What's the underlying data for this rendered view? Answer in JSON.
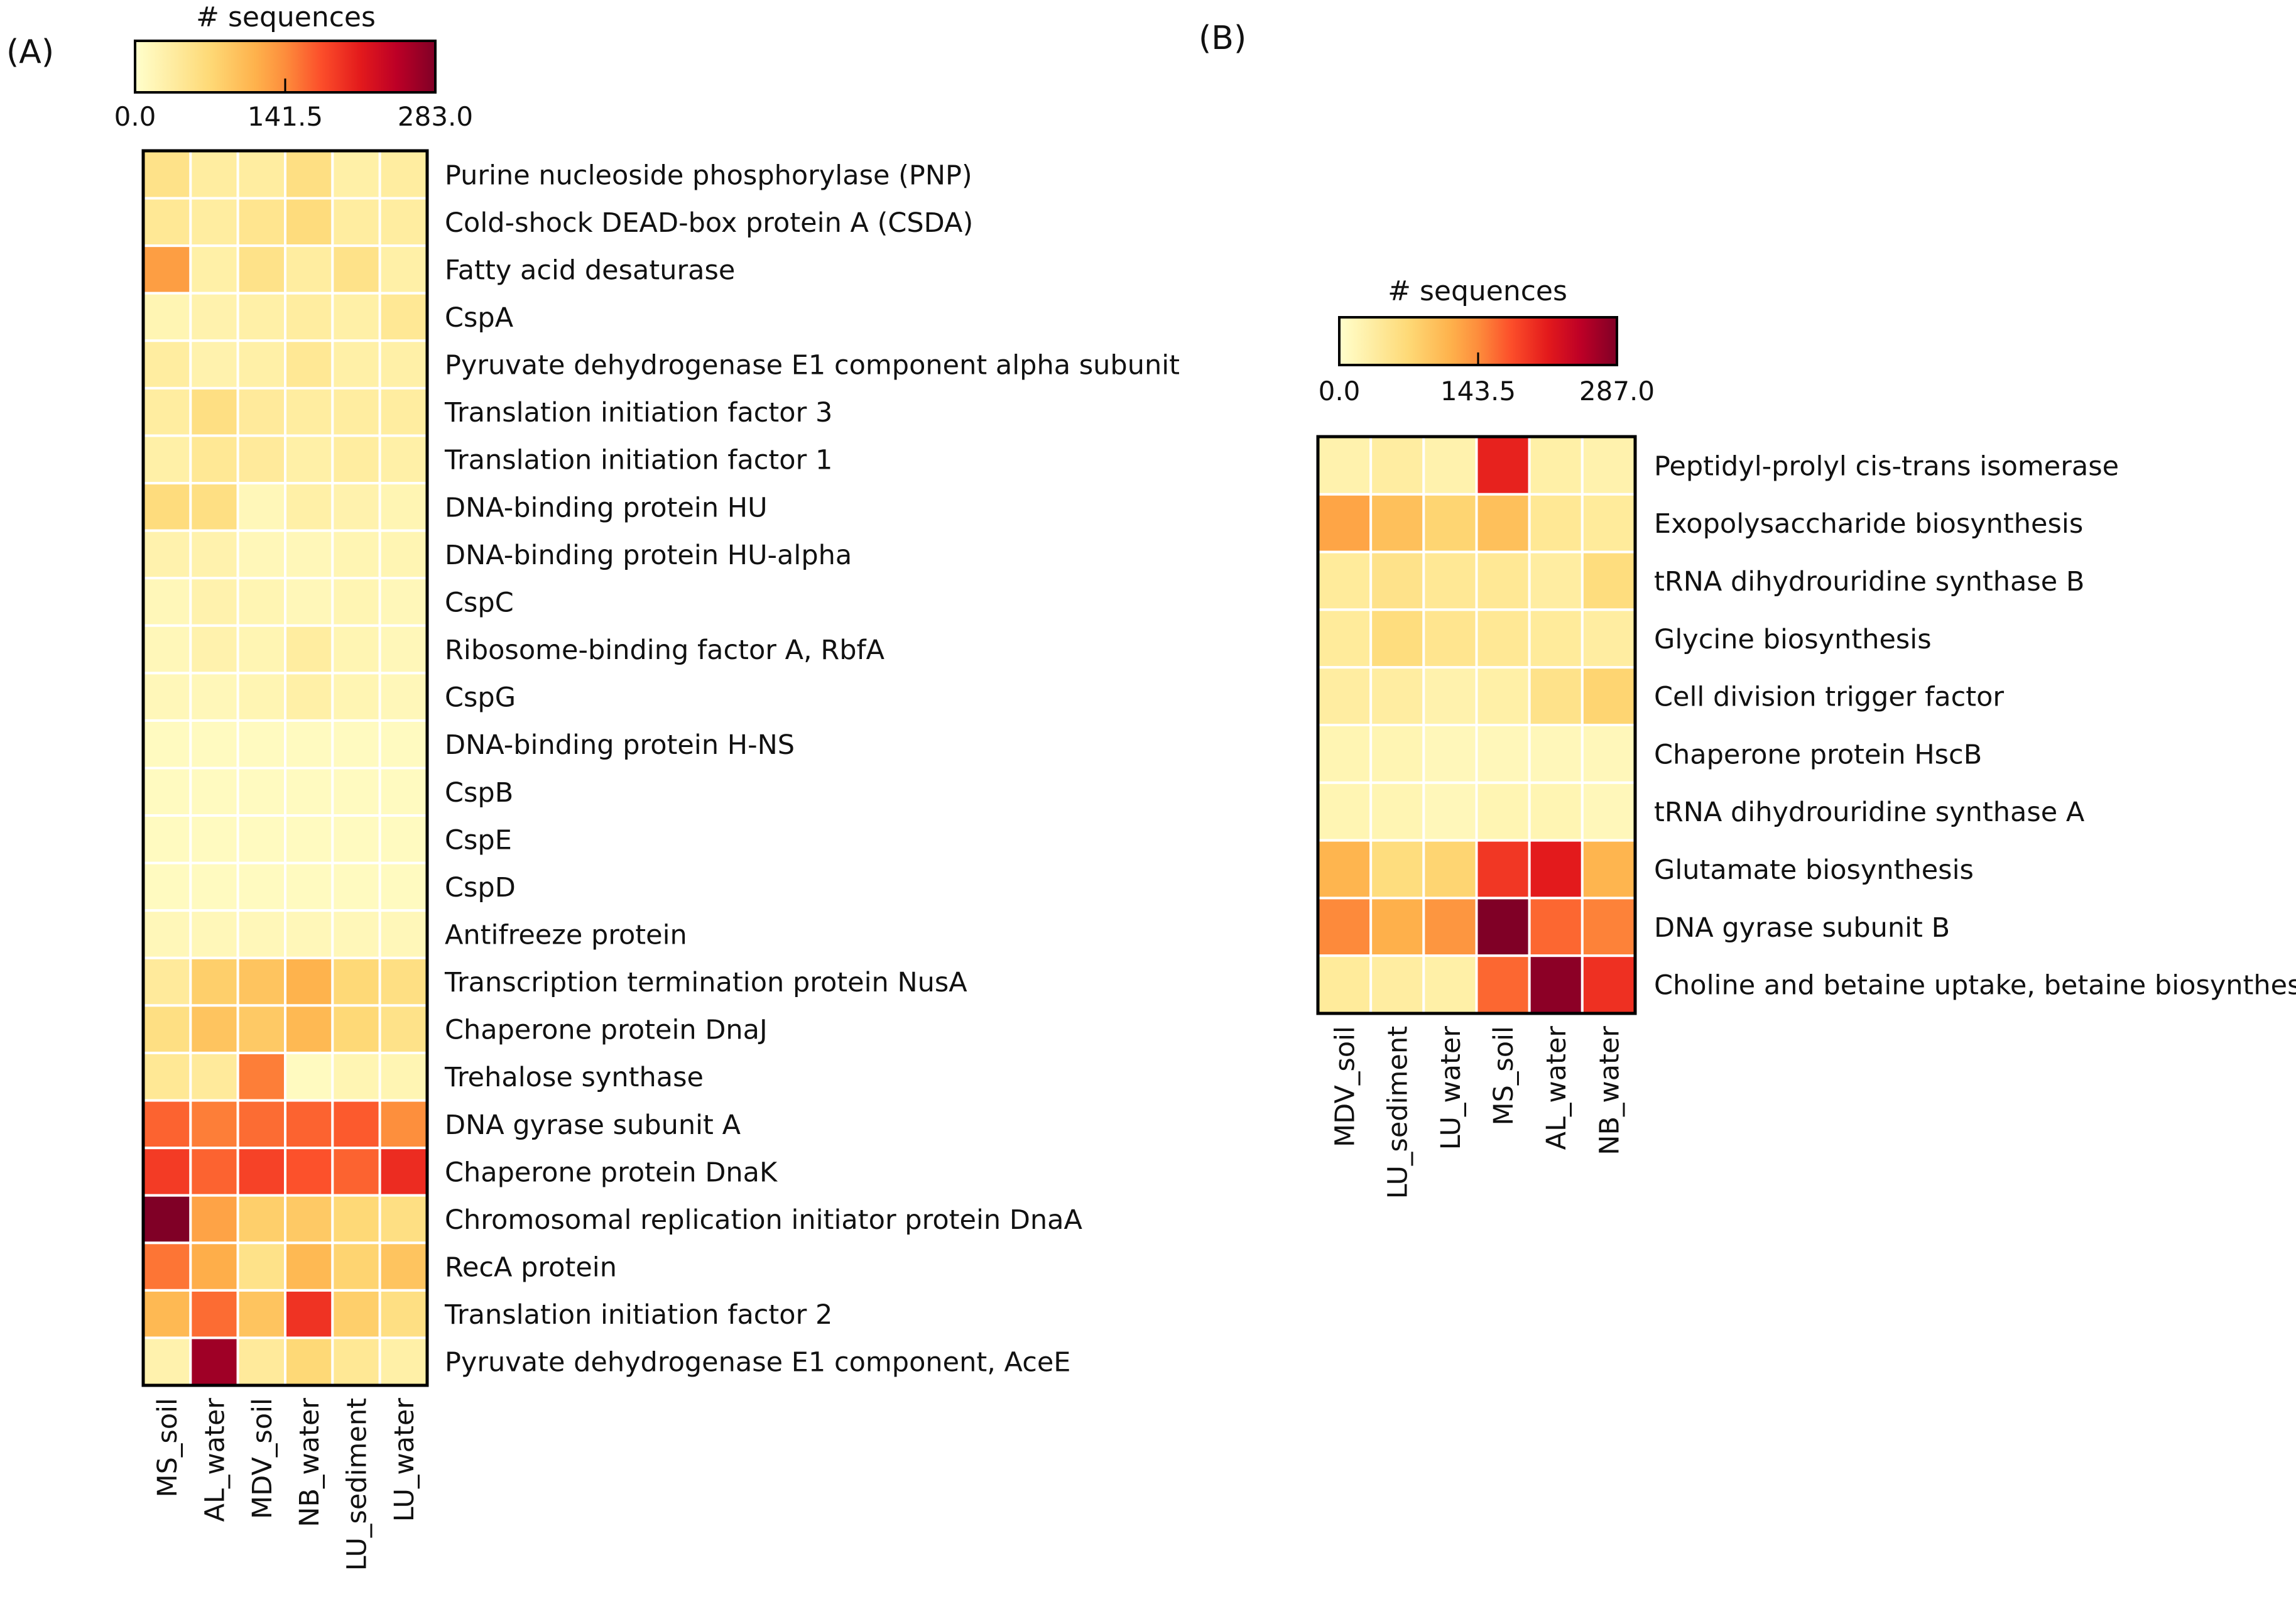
{
  "panels": {
    "a": {
      "tag": "(A)"
    },
    "b": {
      "tag": "(B)"
    }
  },
  "chart_data": [
    {
      "type": "heatmap",
      "panel": "A",
      "colorbar": {
        "title": "# sequences",
        "min": 0.0,
        "max": 283.0,
        "ticks": [
          "0.0",
          "141.5",
          "283.0"
        ]
      },
      "columns": [
        "MS_soil",
        "AL_water",
        "MDV_soil",
        "NB_water",
        "LU_sediment",
        "LU_water"
      ],
      "rows": [
        "Purine nucleoside phosphorylase (PNP)",
        "Cold-shock DEAD-box protein A (CSDA)",
        "Fatty acid desaturase",
        "CspA",
        "Pyruvate dehydrogenase E1 component alpha subunit",
        "Translation initiation factor 3",
        "Translation initiation factor 1",
        "DNA-binding protein HU",
        "DNA-binding protein HU-alpha",
        "CspC",
        "Ribosome-binding factor A, RbfA",
        "CspG",
        "DNA-binding protein H-NS",
        "CspB",
        "CspE",
        "CspD",
        "Antifreeze protein",
        "Transcription termination protein NusA",
        "Chaperone protein DnaJ",
        "Trehalose synthase",
        "DNA gyrase subunit A",
        "Chaperone protein DnaK",
        "Chromosomal replication initiator protein DnaA",
        "RecA protein",
        "Translation initiation factor 2",
        "Pyruvate dehydrogenase E1 component, AceE"
      ],
      "values": [
        [
          55,
          35,
          35,
          60,
          30,
          35
        ],
        [
          45,
          35,
          50,
          65,
          35,
          35
        ],
        [
          125,
          30,
          55,
          35,
          55,
          30
        ],
        [
          20,
          25,
          30,
          35,
          30,
          45
        ],
        [
          35,
          25,
          30,
          45,
          30,
          30
        ],
        [
          35,
          60,
          40,
          35,
          35,
          35
        ],
        [
          30,
          45,
          40,
          30,
          35,
          30
        ],
        [
          65,
          60,
          15,
          30,
          25,
          20
        ],
        [
          25,
          25,
          15,
          15,
          20,
          20
        ],
        [
          15,
          25,
          20,
          15,
          20,
          15
        ],
        [
          15,
          25,
          20,
          35,
          20,
          15
        ],
        [
          15,
          15,
          20,
          30,
          20,
          15
        ],
        [
          10,
          10,
          10,
          10,
          10,
          10
        ],
        [
          10,
          10,
          10,
          10,
          10,
          10
        ],
        [
          10,
          10,
          10,
          10,
          10,
          10
        ],
        [
          10,
          10,
          10,
          10,
          10,
          10
        ],
        [
          15,
          15,
          15,
          15,
          15,
          15
        ],
        [
          40,
          80,
          90,
          105,
          70,
          60
        ],
        [
          60,
          90,
          85,
          100,
          70,
          55
        ],
        [
          45,
          40,
          150,
          10,
          20,
          20
        ],
        [
          165,
          150,
          160,
          165,
          170,
          140
        ],
        [
          190,
          165,
          185,
          175,
          165,
          200
        ],
        [
          283,
          120,
          80,
          85,
          70,
          60
        ],
        [
          155,
          110,
          55,
          100,
          75,
          90
        ],
        [
          100,
          160,
          90,
          195,
          80,
          60
        ],
        [
          25,
          265,
          40,
          70,
          45,
          30
        ]
      ]
    },
    {
      "type": "heatmap",
      "panel": "B",
      "colorbar": {
        "title": "# sequences",
        "min": 0.0,
        "max": 287.0,
        "ticks": [
          "0.0",
          "143.5",
          "287.0"
        ]
      },
      "columns": [
        "MDV_soil",
        "LU_sediment",
        "LU_water",
        "MS_soil",
        "AL_water",
        "NB_water"
      ],
      "rows": [
        "Peptidyl-prolyl cis-trans isomerase",
        "Exopolysaccharide biosynthesis",
        "tRNA dihydrouridine synthase B",
        "Glycine biosynthesis",
        "Cell division trigger factor",
        "Chaperone protein HscB",
        "tRNA dihydrouridine synthase A",
        "Glutamate biosynthesis",
        "DNA gyrase subunit B",
        "Choline and betaine uptake, betaine biosynthesis"
      ],
      "values": [
        [
          25,
          35,
          25,
          210,
          30,
          25
        ],
        [
          120,
          95,
          75,
          95,
          45,
          40
        ],
        [
          40,
          55,
          45,
          45,
          35,
          65
        ],
        [
          40,
          65,
          50,
          45,
          40,
          35
        ],
        [
          35,
          35,
          25,
          30,
          55,
          75
        ],
        [
          20,
          20,
          15,
          15,
          15,
          15
        ],
        [
          20,
          20,
          15,
          20,
          20,
          15
        ],
        [
          105,
          65,
          75,
          195,
          215,
          105
        ],
        [
          145,
          110,
          135,
          287,
          165,
          150
        ],
        [
          40,
          35,
          30,
          165,
          280,
          200
        ]
      ]
    }
  ]
}
